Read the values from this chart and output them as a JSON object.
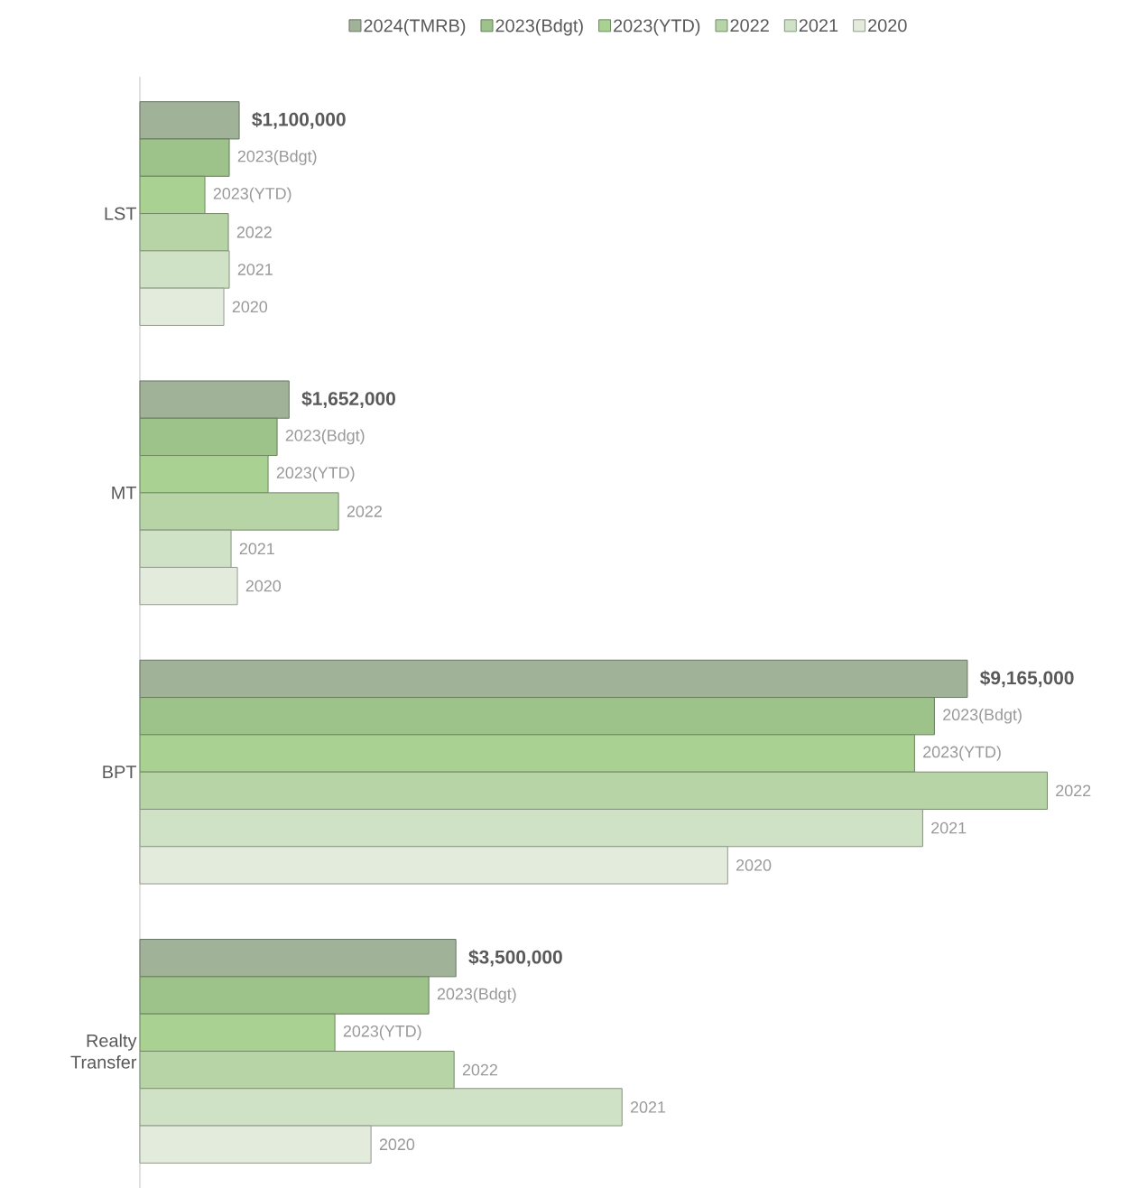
{
  "chart_data": {
    "type": "bar",
    "orientation": "horizontal",
    "legend": "top",
    "categories": [
      "LST",
      "MT",
      "BPT",
      "Realty Transfer"
    ],
    "series": [
      {
        "name": "2024(TMRB)",
        "color": "#a0b398",
        "values": [
          1100000,
          1652000,
          9165000,
          3500000
        ],
        "value_labels": [
          "$1,100,000",
          "$1,652,000",
          "$9,165,000",
          "$3,500,000"
        ]
      },
      {
        "name": "2023(Bdgt)",
        "color": "#9dc28a",
        "values": [
          990000,
          1520000,
          8800000,
          3200000
        ]
      },
      {
        "name": "2023(YTD)",
        "color": "#a8d192",
        "values": [
          720000,
          1420000,
          8580000,
          2160000
        ]
      },
      {
        "name": "2022",
        "color": "#b6d4a5",
        "values": [
          980000,
          2200000,
          10050000,
          3480000
        ]
      },
      {
        "name": "2021",
        "color": "#cfe2c5",
        "values": [
          990000,
          1010000,
          8670000,
          5340000
        ]
      },
      {
        "name": "2020",
        "color": "#e3ecdc",
        "values": [
          930000,
          1080000,
          6510000,
          2560000
        ]
      }
    ]
  }
}
